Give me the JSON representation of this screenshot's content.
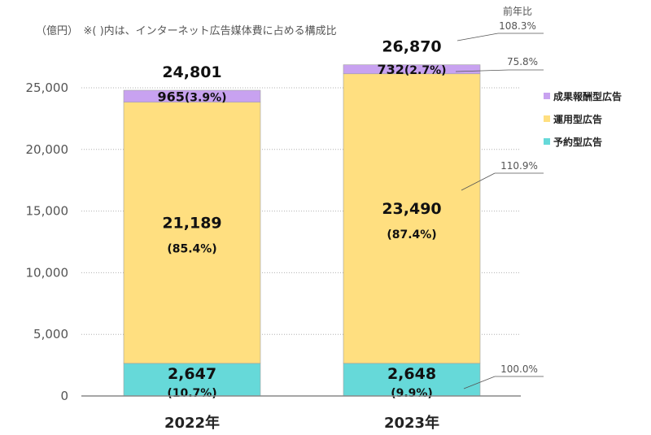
{
  "chart_data": {
    "type": "stacked-bar",
    "unit_note": "（億円）　※( )内は、インターネット広告媒体費に占める構成比",
    "categories": [
      "2022年",
      "2023年"
    ],
    "ylim": [
      0,
      30000
    ],
    "yticks": [
      0,
      5000,
      10000,
      15000,
      20000,
      25000
    ],
    "ytick_labels": [
      "0",
      "5,000",
      "10,000",
      "15,000",
      "20,000",
      "25,000"
    ],
    "grid": true,
    "legend_position": "right",
    "totals": [
      24801,
      26870
    ],
    "total_labels": [
      "24,801",
      "26,870"
    ],
    "series": [
      {
        "name": "予約型広告",
        "color": "#66d9d9",
        "values": [
          2647,
          2648
        ],
        "value_labels": [
          "2,647",
          "2,648"
        ],
        "share_labels": [
          "(10.7%)",
          "(9.9%)"
        ],
        "yoy": "100.0%"
      },
      {
        "name": "運用型広告",
        "color": "#ffdf80",
        "values": [
          21189,
          23490
        ],
        "value_labels": [
          "21,189",
          "23,490"
        ],
        "share_labels": [
          "(85.4%)",
          "(87.4%)"
        ],
        "yoy": "110.9%"
      },
      {
        "name": "成果報酬型広告",
        "color": "#c8a2f0",
        "values": [
          965,
          732
        ],
        "value_labels": [
          "965",
          "732"
        ],
        "share_labels": [
          "(3.9%)",
          "(2.7%)"
        ],
        "yoy": "75.8%"
      }
    ],
    "yoy_header": "前年比",
    "total_yoy": "108.3%"
  }
}
